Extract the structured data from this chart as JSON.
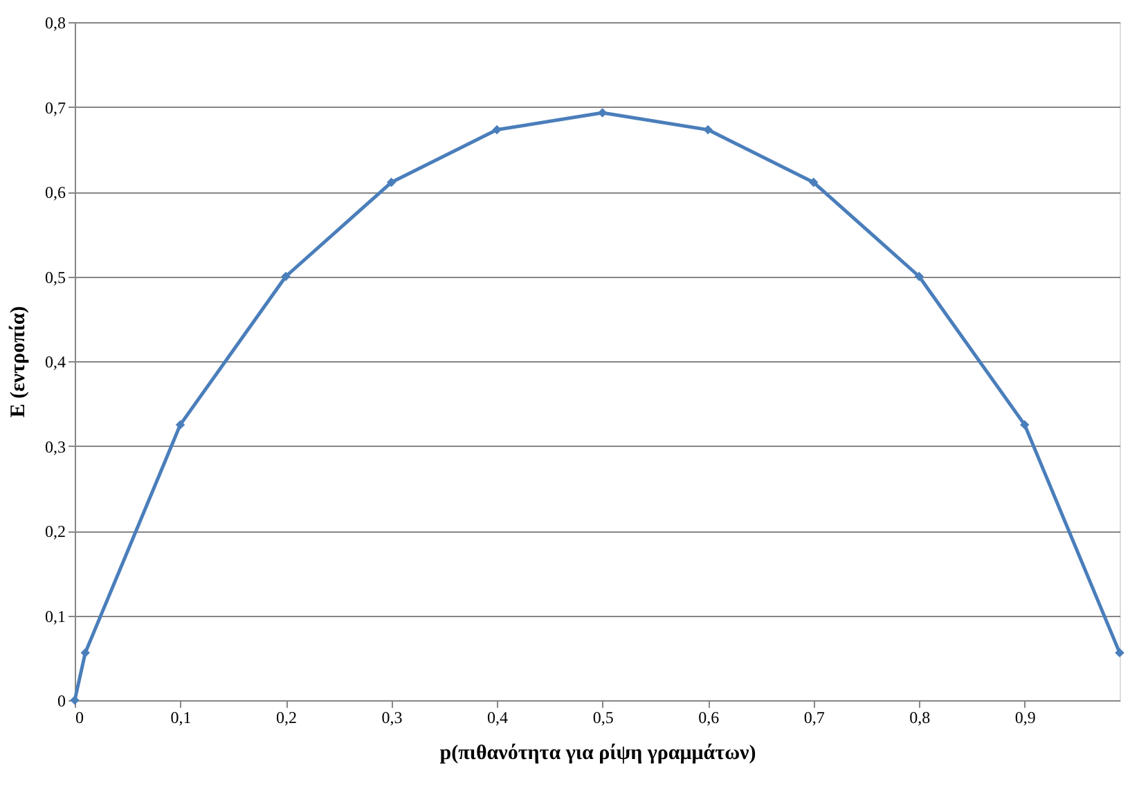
{
  "chart_data": {
    "type": "line",
    "xlabel": "p(πιθανότητα  για ρίψη γραμμάτων)",
    "ylabel": "E (εντροπία)",
    "x": [
      0,
      0.01,
      0.1,
      0.2,
      0.3,
      0.4,
      0.5,
      0.6,
      0.7,
      0.8,
      0.9,
      0.99
    ],
    "series": [
      {
        "color": "#4a7ebb",
        "values": [
          0,
          0.056,
          0.325,
          0.5,
          0.611,
          0.673,
          0.693,
          0.673,
          0.611,
          0.5,
          0.325,
          0.056
        ]
      }
    ],
    "xlim": [
      0,
      0.99
    ],
    "xticks": [
      0,
      {
        "value": 0.1,
        "label": "0,1"
      },
      {
        "value": 0.2,
        "label": "0,2"
      },
      {
        "value": 0.3,
        "label": "0,3"
      },
      {
        "value": 0.4,
        "label": "0,4"
      },
      {
        "value": 0.5,
        "label": "0,5"
      },
      {
        "value": 0.6,
        "label": "0,6"
      },
      {
        "value": 0.7,
        "label": "0,7"
      },
      {
        "value": 0.8,
        "label": "0,8"
      },
      {
        "value": 0.9,
        "label": "0,9"
      }
    ],
    "ylim": [
      0,
      0.8
    ],
    "yticks": [
      0,
      {
        "value": 0.1,
        "label": "0,1"
      },
      {
        "value": 0.2,
        "label": "0,2"
      },
      {
        "value": 0.3,
        "label": "0,3"
      },
      {
        "value": 0.4,
        "label": "0,4"
      },
      {
        "value": 0.5,
        "label": "0,5"
      },
      {
        "value": 0.6,
        "label": "0,6"
      },
      {
        "value": 0.7,
        "label": "0,7"
      },
      {
        "value": 0.8,
        "label": "0,8"
      }
    ],
    "grid": "y",
    "marker": "diamond",
    "line_style": "solid"
  }
}
